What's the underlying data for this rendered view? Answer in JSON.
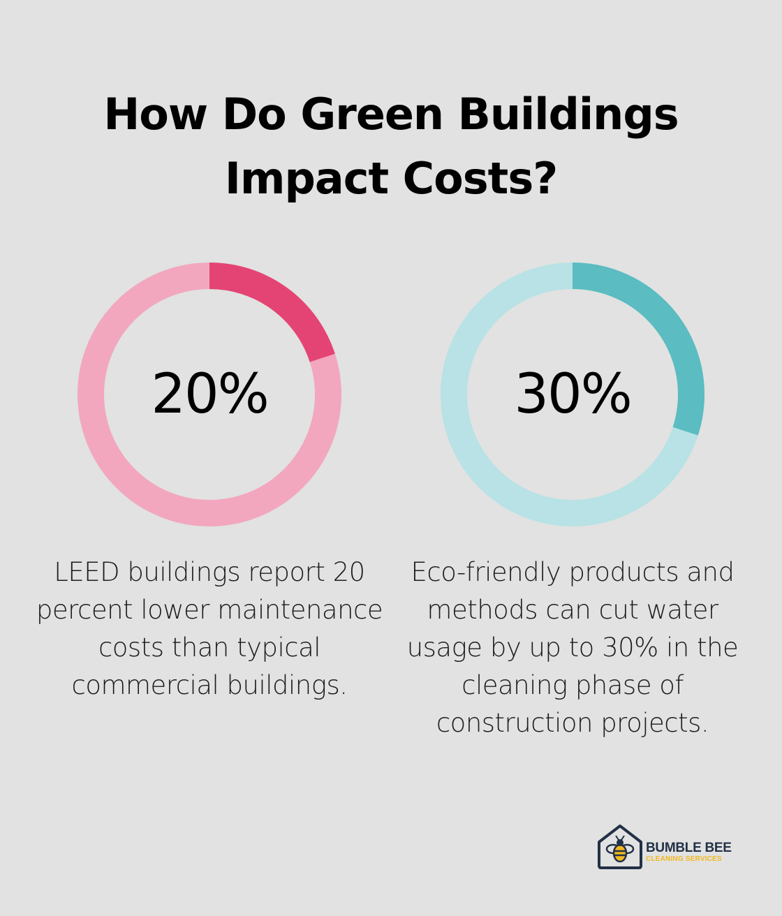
{
  "title": {
    "line1": "How Do Green Buildings",
    "line2": "Impact Costs?"
  },
  "stats": [
    {
      "value_label": "20%",
      "percent": 20,
      "track_color": "#f2a7bf",
      "fill_color": "#e44474",
      "description": "LEED buildings report 20 percent lower maintenance costs than typical commercial buildings."
    },
    {
      "value_label": "30%",
      "percent": 30,
      "track_color": "#b8e2e5",
      "fill_color": "#5bbcc1",
      "description": "Eco-friendly products and methods can cut water usage by up to 30% in the cleaning phase of construction projects."
    }
  ],
  "logo": {
    "name": "BUMBLE BEE",
    "tagline": "CLEANING SERVICES",
    "icon": "bee-house-icon",
    "primary_color": "#223046",
    "accent_color": "#f2b81f"
  },
  "colors": {
    "background": "#e1e2e1"
  }
}
